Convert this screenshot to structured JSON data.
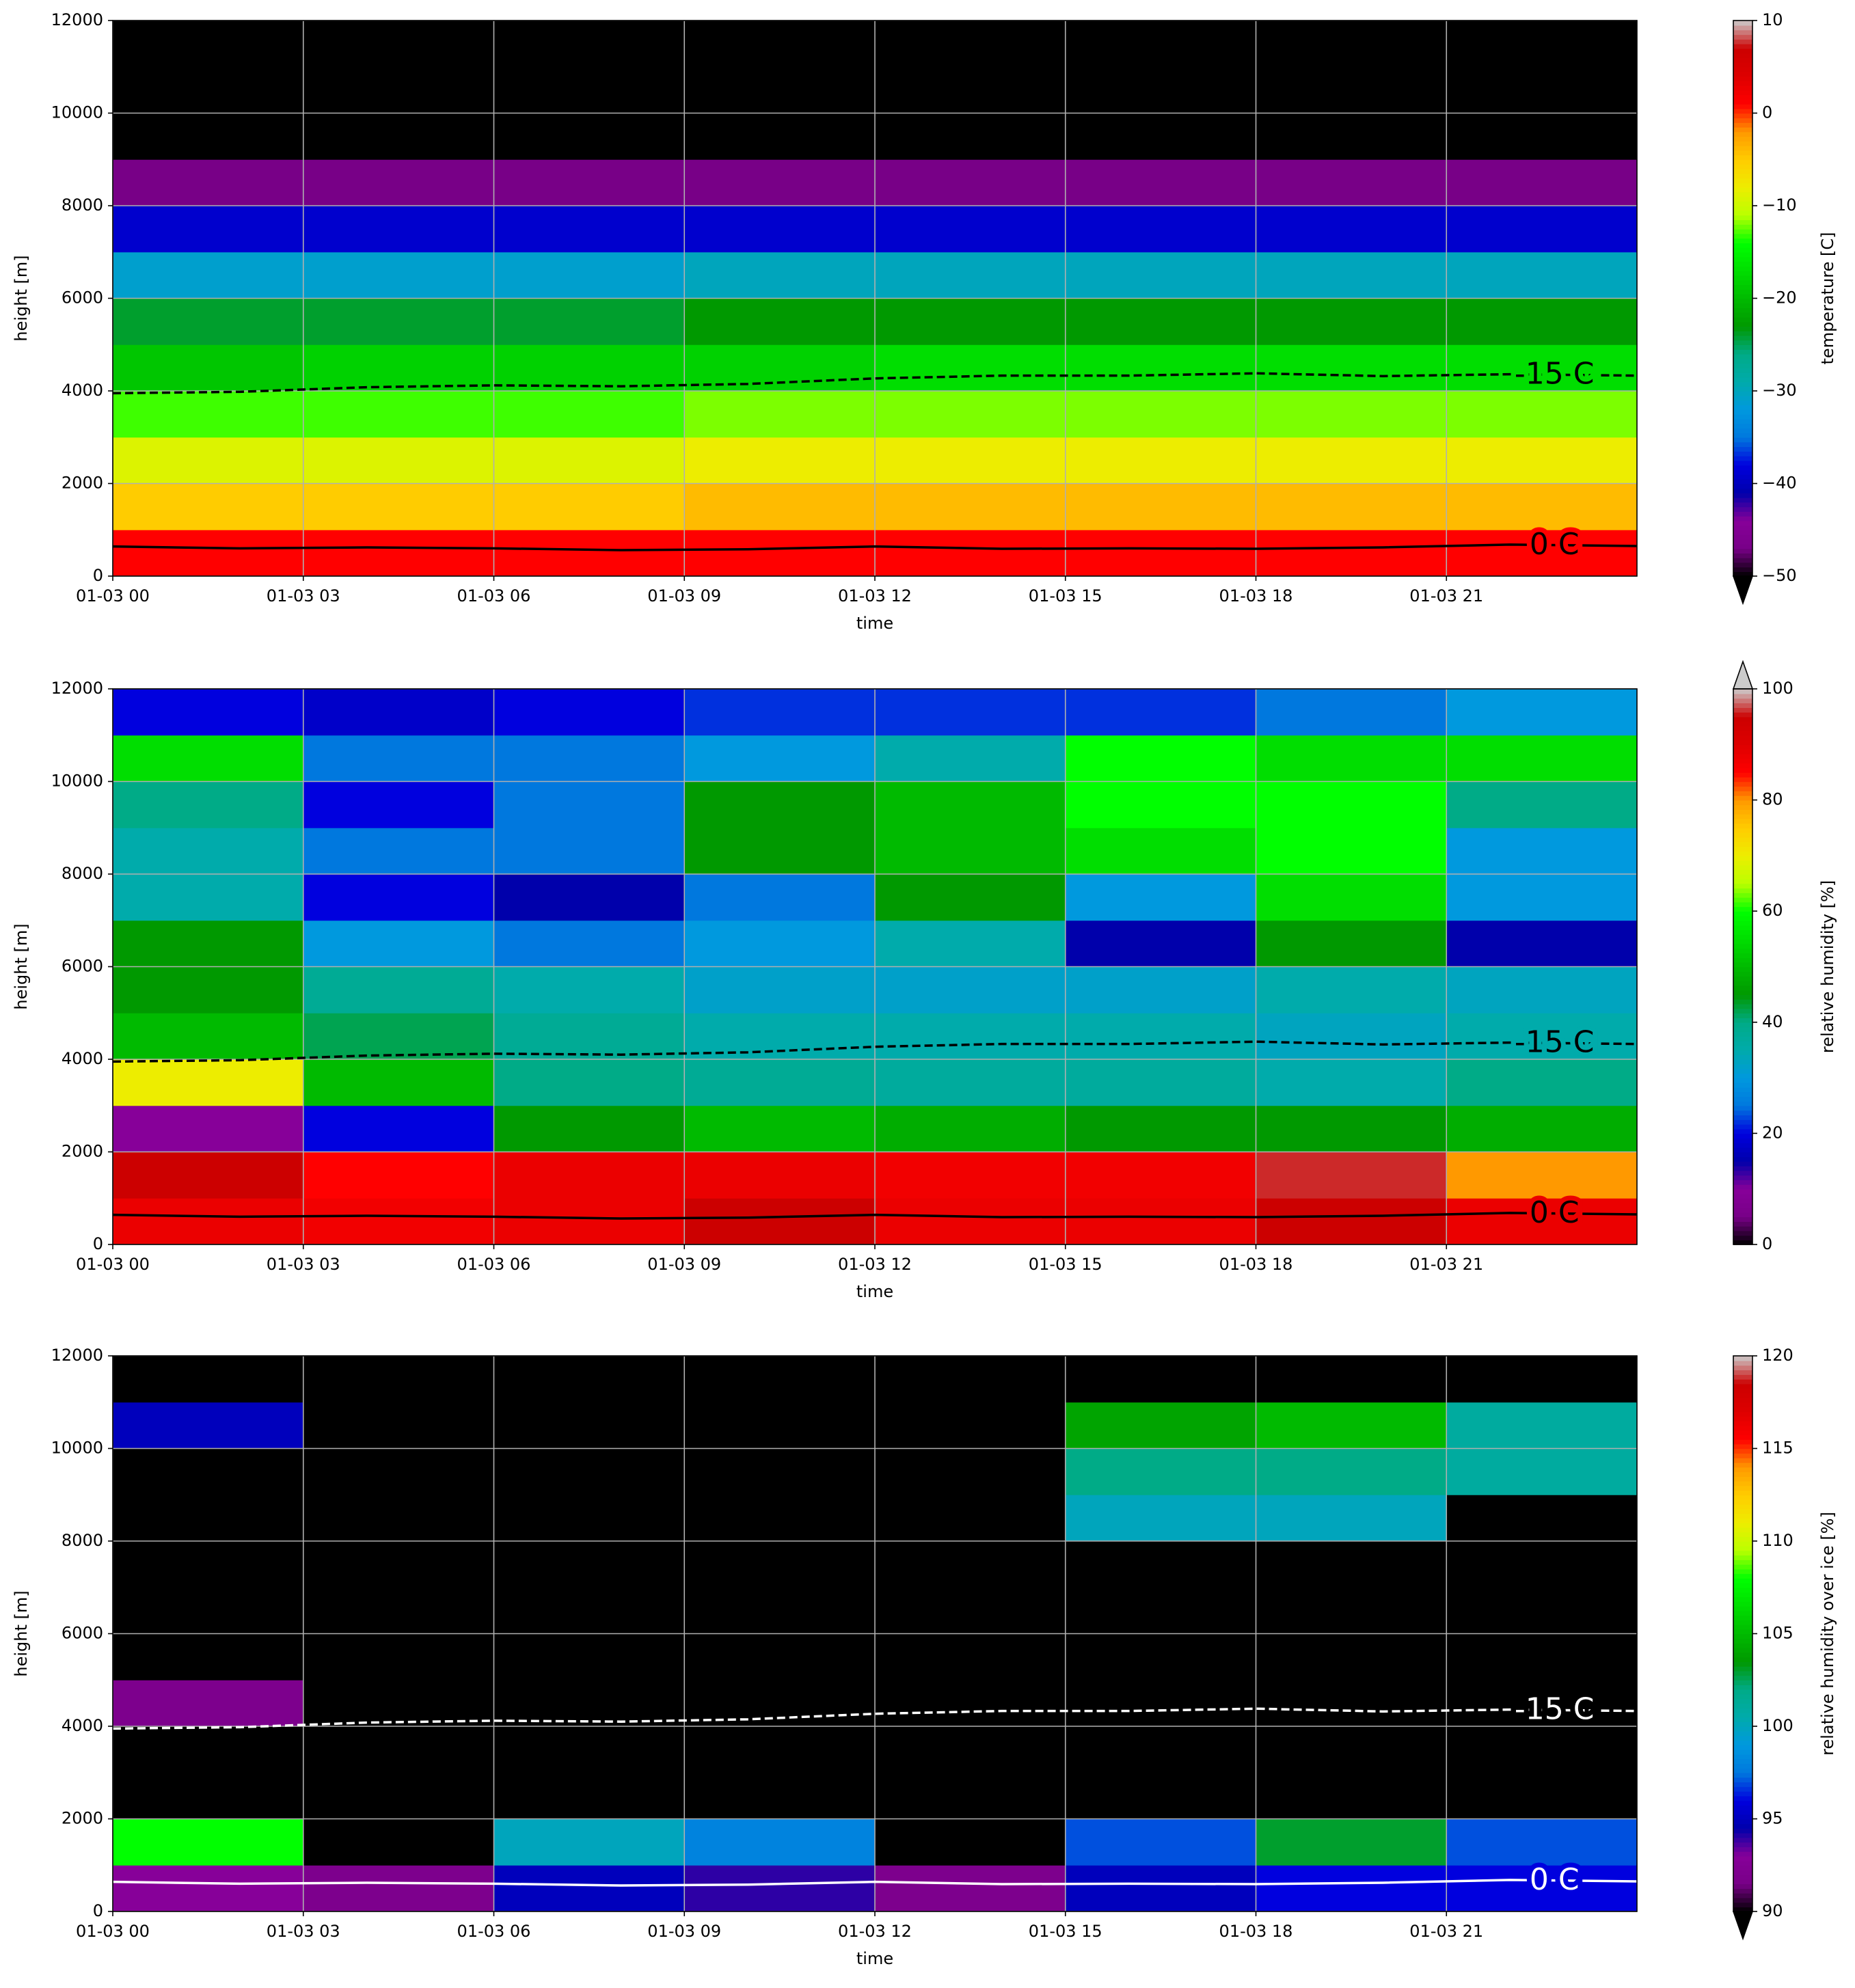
{
  "chart_data": [
    {
      "type": "heatmap",
      "colormap": "nipy_spectral",
      "colorbar_label": "temperature [C]",
      "ylabel": "height [m]",
      "xlabel": "time",
      "xlim": [
        0,
        24
      ],
      "ylim": [
        0,
        12000
      ],
      "grid": true,
      "xticks": [
        {
          "value": 0,
          "label": "01-03 00"
        },
        {
          "value": 3,
          "label": "01-03 03"
        },
        {
          "value": 6,
          "label": "01-03 06"
        },
        {
          "value": 9,
          "label": "01-03 09"
        },
        {
          "value": 12,
          "label": "01-03 12"
        },
        {
          "value": 15,
          "label": "01-03 15"
        },
        {
          "value": 18,
          "label": "01-03 18"
        },
        {
          "value": 21,
          "label": "01-03 21"
        }
      ],
      "yticks": [
        0,
        2000,
        4000,
        6000,
        8000,
        10000,
        12000
      ],
      "clim": [
        -50,
        10
      ],
      "extend": "min",
      "cticks": [
        {
          "value": -50,
          "label": "−50"
        },
        {
          "value": -40,
          "label": "−40"
        },
        {
          "value": -30,
          "label": "−30"
        },
        {
          "value": -20,
          "label": "−20"
        },
        {
          "value": -10,
          "label": "−10"
        },
        0,
        10
      ],
      "x": [
        0,
        3,
        6,
        9,
        12,
        15,
        18,
        21
      ],
      "y": [
        0,
        1000,
        2000,
        3000,
        4000,
        5000,
        6000,
        7000,
        8000,
        9000,
        10000,
        11000
      ],
      "z": [
        [
          1,
          1,
          1,
          1,
          1,
          1,
          1,
          1
        ],
        [
          -5,
          -5,
          -5,
          -4,
          -4,
          -4,
          -4,
          -4
        ],
        [
          -9,
          -9,
          -9,
          -8,
          -8,
          -8,
          -8,
          -8
        ],
        [
          -13,
          -13,
          -13,
          -12,
          -12,
          -12,
          -12,
          -12
        ],
        [
          -19,
          -18,
          -18,
          -18,
          -17,
          -17,
          -17,
          -17
        ],
        [
          -24,
          -24,
          -24,
          -23,
          -23,
          -23,
          -23,
          -23
        ],
        [
          -31,
          -31,
          -31,
          -30,
          -30,
          -30,
          -30,
          -30
        ],
        [
          -39,
          -39,
          -39,
          -39,
          -39,
          -39,
          -39,
          -39
        ],
        [
          -47,
          -47,
          -47,
          -47,
          -47,
          -47,
          -47,
          -47
        ],
        [
          -55,
          -55,
          -55,
          -55,
          -55,
          -55,
          -55,
          -55
        ],
        [
          -55,
          -55,
          -55,
          -55,
          -55,
          -55,
          -55,
          -55
        ],
        [
          -55,
          -55,
          -55,
          -55,
          -55,
          -55,
          -55,
          -55
        ]
      ],
      "contour_color": "#000000",
      "contour_x": [
        0,
        2,
        4,
        6,
        8,
        10,
        12,
        14,
        16,
        18,
        20,
        22,
        24
      ],
      "contours": [
        {
          "name": "0 C",
          "values": [
            640,
            600,
            620,
            600,
            560,
            580,
            640,
            590,
            600,
            590,
            620,
            680,
            650
          ]
        },
        {
          "name": "-15 C",
          "values": [
            3950,
            3980,
            4080,
            4120,
            4100,
            4150,
            4270,
            4330,
            4330,
            4380,
            4320,
            4360,
            4330
          ]
        }
      ]
    },
    {
      "type": "heatmap",
      "colormap": "nipy_spectral",
      "colorbar_label": "relative humidity [%]",
      "ylabel": "height [m]",
      "xlabel": "time",
      "xlim": [
        0,
        24
      ],
      "ylim": [
        0,
        12000
      ],
      "grid": true,
      "xticks": [
        {
          "value": 0,
          "label": "01-03 00"
        },
        {
          "value": 3,
          "label": "01-03 03"
        },
        {
          "value": 6,
          "label": "01-03 06"
        },
        {
          "value": 9,
          "label": "01-03 09"
        },
        {
          "value": 12,
          "label": "01-03 12"
        },
        {
          "value": 15,
          "label": "01-03 15"
        },
        {
          "value": 18,
          "label": "01-03 18"
        },
        {
          "value": 21,
          "label": "01-03 21"
        }
      ],
      "yticks": [
        0,
        2000,
        4000,
        6000,
        8000,
        10000,
        12000
      ],
      "clim": [
        0,
        100
      ],
      "extend": "max",
      "cticks": [
        0,
        20,
        40,
        60,
        80,
        100
      ],
      "x": [
        0,
        3,
        6,
        9,
        12,
        15,
        18,
        21
      ],
      "y": [
        0,
        1000,
        2000,
        3000,
        4000,
        5000,
        6000,
        7000,
        8000,
        9000,
        10000,
        11000
      ],
      "z": [
        [
          88,
          87,
          88,
          95,
          88,
          88,
          95,
          88
        ],
        [
          95,
          85,
          88,
          88,
          87,
          87,
          96,
          80
        ],
        [
          10,
          20,
          45,
          50,
          48,
          45,
          45,
          48
        ],
        [
          70,
          50,
          40,
          38,
          37,
          37,
          35,
          40
        ],
        [
          50,
          42,
          38,
          35,
          35,
          35,
          33,
          35
        ],
        [
          45,
          38,
          35,
          32,
          32,
          32,
          35,
          33
        ],
        [
          45,
          30,
          25,
          30,
          35,
          15,
          45,
          15
        ],
        [
          35,
          20,
          15,
          25,
          45,
          30,
          55,
          30
        ],
        [
          35,
          25,
          25,
          45,
          50,
          55,
          60,
          30
        ],
        [
          40,
          20,
          25,
          45,
          50,
          60,
          60,
          40
        ],
        [
          55,
          25,
          25,
          30,
          35,
          60,
          55,
          55
        ],
        [
          20,
          18,
          20,
          22,
          22,
          22,
          25,
          30
        ]
      ],
      "contour_color": "#000000",
      "contour_x": [
        0,
        2,
        4,
        6,
        8,
        10,
        12,
        14,
        16,
        18,
        20,
        22,
        24
      ],
      "contours": [
        {
          "name": "0 C",
          "values": [
            640,
            600,
            620,
            600,
            560,
            580,
            640,
            590,
            600,
            590,
            620,
            680,
            650
          ]
        },
        {
          "name": "-15 C",
          "values": [
            3950,
            3980,
            4080,
            4120,
            4100,
            4150,
            4270,
            4330,
            4330,
            4380,
            4320,
            4360,
            4330
          ]
        }
      ]
    },
    {
      "type": "heatmap",
      "colormap": "nipy_spectral",
      "colorbar_label": "relative humidity over ice [%]",
      "ylabel": "height [m]",
      "xlabel": "time",
      "xlim": [
        0,
        24
      ],
      "ylim": [
        0,
        12000
      ],
      "grid": true,
      "xticks": [
        {
          "value": 0,
          "label": "01-03 00"
        },
        {
          "value": 3,
          "label": "01-03 03"
        },
        {
          "value": 6,
          "label": "01-03 06"
        },
        {
          "value": 9,
          "label": "01-03 09"
        },
        {
          "value": 12,
          "label": "01-03 12"
        },
        {
          "value": 15,
          "label": "01-03 15"
        },
        {
          "value": 18,
          "label": "01-03 18"
        },
        {
          "value": 21,
          "label": "01-03 21"
        }
      ],
      "yticks": [
        0,
        2000,
        4000,
        6000,
        8000,
        10000,
        12000
      ],
      "clim": [
        90,
        120
      ],
      "extend": "min",
      "cticks": [
        90,
        95,
        100,
        105,
        110,
        115,
        120
      ],
      "x": [
        0,
        3,
        6,
        9,
        12,
        15,
        18,
        21
      ],
      "y": [
        0,
        1000,
        2000,
        3000,
        4000,
        5000,
        6000,
        7000,
        8000,
        9000,
        10000,
        11000
      ],
      "z": [
        [
          93,
          92,
          95,
          94,
          92,
          95,
          96,
          96
        ],
        [
          108,
          88,
          100,
          98,
          88,
          97,
          103,
          97
        ],
        [
          85,
          85,
          85,
          85,
          85,
          85,
          85,
          85
        ],
        [
          85,
          85,
          85,
          85,
          85,
          85,
          85,
          85
        ],
        [
          92,
          85,
          85,
          85,
          85,
          85,
          85,
          85
        ],
        [
          85,
          85,
          85,
          85,
          85,
          85,
          85,
          85
        ],
        [
          85,
          85,
          85,
          85,
          85,
          85,
          85,
          85
        ],
        [
          85,
          85,
          85,
          85,
          85,
          85,
          85,
          85
        ],
        [
          85,
          85,
          85,
          85,
          85,
          100,
          100,
          85
        ],
        [
          85,
          85,
          85,
          85,
          85,
          102,
          102,
          101
        ],
        [
          95,
          85,
          85,
          85,
          85,
          104,
          105,
          101
        ],
        [
          85,
          85,
          85,
          85,
          85,
          85,
          85,
          85
        ]
      ],
      "contour_color": "#ffffff",
      "contour_x": [
        0,
        2,
        4,
        6,
        8,
        10,
        12,
        14,
        16,
        18,
        20,
        22,
        24
      ],
      "contours": [
        {
          "name": "0 C",
          "values": [
            640,
            600,
            620,
            600,
            560,
            580,
            640,
            590,
            600,
            590,
            620,
            680,
            650
          ]
        },
        {
          "name": "-15 C",
          "values": [
            3950,
            3980,
            4080,
            4120,
            4100,
            4150,
            4270,
            4330,
            4330,
            4380,
            4320,
            4360,
            4330
          ]
        }
      ]
    }
  ]
}
